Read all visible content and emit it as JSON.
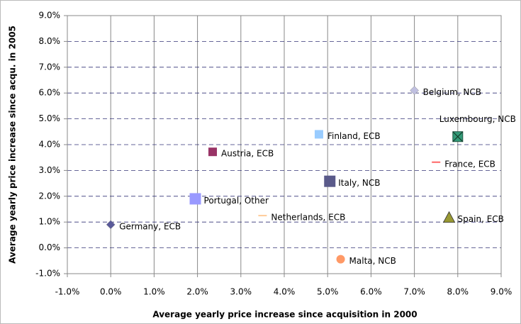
{
  "chart_data": {
    "type": "scatter",
    "x_label": "Average yearly price increase since acquisition in 2000",
    "y_label": "Average yearly price increase since acqu. in 2005",
    "xlim": [
      -1,
      9
    ],
    "ylim": [
      -1,
      9
    ],
    "xticks": [
      {
        "value": -1,
        "label": "-1.0%"
      },
      {
        "value": 0,
        "label": "0.0%"
      },
      {
        "value": 1,
        "label": "1.0%"
      },
      {
        "value": 2,
        "label": "2.0%"
      },
      {
        "value": 3,
        "label": "3.0%"
      },
      {
        "value": 4,
        "label": "4.0%"
      },
      {
        "value": 5,
        "label": "5.0%"
      },
      {
        "value": 6,
        "label": "6.0%"
      },
      {
        "value": 7,
        "label": "7.0%"
      },
      {
        "value": 8,
        "label": "8.0%"
      },
      {
        "value": 9,
        "label": "9.0%"
      }
    ],
    "yticks": [
      {
        "value": -1,
        "label": "-1.0%"
      },
      {
        "value": 0,
        "label": "0.0%"
      },
      {
        "value": 1,
        "label": "1.0%"
      },
      {
        "value": 2,
        "label": "2.0%"
      },
      {
        "value": 3,
        "label": "3.0%"
      },
      {
        "value": 4,
        "label": "4.0%"
      },
      {
        "value": 5,
        "label": "5.0%"
      },
      {
        "value": 6,
        "label": "6.0%"
      },
      {
        "value": 7,
        "label": "7.0%"
      },
      {
        "value": 8,
        "label": "8.0%"
      },
      {
        "value": 9,
        "label": "9.0%"
      }
    ],
    "grid": true,
    "series": [
      {
        "name": "Germany, ECB",
        "color": "#5a5a9a",
        "marker": "diamond",
        "x": [
          0.0
        ],
        "values": [
          0.9
        ]
      },
      {
        "name": "Portugal, Other",
        "color": "#9999ff",
        "marker": "square-large",
        "x": [
          1.95
        ],
        "values": [
          1.9
        ]
      },
      {
        "name": "Austria, ECB",
        "color": "#993366",
        "marker": "square",
        "x": [
          2.35
        ],
        "values": [
          3.72
        ]
      },
      {
        "name": "Netherlands, ECB",
        "color": "#ffcc99",
        "marker": "dash",
        "x": [
          3.5
        ],
        "values": [
          1.25
        ]
      },
      {
        "name": "Finland, ECB",
        "color": "#99ccff",
        "marker": "square",
        "x": [
          4.8
        ],
        "values": [
          4.4
        ]
      },
      {
        "name": "Italy, NCB",
        "color": "#5a5a8a",
        "marker": "square-large",
        "x": [
          5.05
        ],
        "values": [
          2.58
        ]
      },
      {
        "name": "Malta, NCB",
        "color": "#ff9966",
        "marker": "circle",
        "x": [
          5.3
        ],
        "values": [
          -0.44
        ]
      },
      {
        "name": "Belgium, NCB",
        "color": "#c0c0e0",
        "marker": "diamond",
        "x": [
          7.0
        ],
        "values": [
          6.1
        ]
      },
      {
        "name": "France, ECB",
        "color": "#ff6666",
        "marker": "dash",
        "x": [
          7.5
        ],
        "values": [
          3.32
        ]
      },
      {
        "name": "Luxembourg, NCB",
        "color": "#339977",
        "marker": "square-x",
        "x": [
          8.0
        ],
        "values": [
          4.31
        ]
      },
      {
        "name": "Spain, ECB",
        "color": "#999933",
        "marker": "triangle",
        "x": [
          7.8
        ],
        "values": [
          1.18
        ]
      }
    ]
  }
}
